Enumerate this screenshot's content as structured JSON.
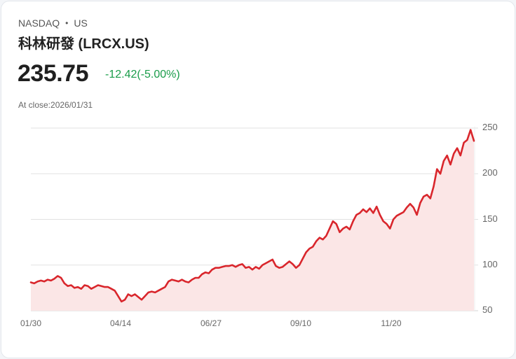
{
  "header": {
    "exchange": "NASDAQ",
    "separator": "•",
    "region": "US",
    "title": "科林研發 (LRCX.US)",
    "price": "235.75",
    "change": "-12.42(-5.00%)",
    "close_label": "At close:2026/01/31"
  },
  "colors": {
    "line": "#d9262c",
    "fill": "#fbe6e6",
    "change_text": "#1a9c4a",
    "grid": "#e2e2e2"
  },
  "chart_data": {
    "type": "area",
    "title": "科林研發 (LRCX.US)",
    "xlabel": "",
    "ylabel": "",
    "x_tick_labels": [
      "01/30",
      "04/14",
      "06/27",
      "09/10",
      "11/20"
    ],
    "y_tick_labels": [
      "250",
      "200",
      "150",
      "100",
      "50"
    ],
    "y_ticks": [
      250,
      200,
      150,
      100,
      50
    ],
    "ylim": [
      50,
      250
    ],
    "grid": true,
    "legend": "none",
    "y_axis_position": "right",
    "series": [
      {
        "name": "LRCX.US",
        "values": [
          81,
          80,
          82,
          83,
          82,
          84,
          83,
          85,
          88,
          86,
          80,
          77,
          78,
          75,
          76,
          74,
          78,
          77,
          74,
          76,
          78,
          77,
          76,
          76,
          74,
          72,
          66,
          60,
          62,
          68,
          66,
          68,
          65,
          62,
          66,
          70,
          71,
          70,
          72,
          74,
          76,
          82,
          84,
          83,
          82,
          84,
          82,
          81,
          84,
          86,
          86,
          90,
          92,
          91,
          95,
          97,
          97,
          98,
          99,
          99,
          100,
          98,
          100,
          101,
          97,
          98,
          95,
          98,
          96,
          100,
          102,
          104,
          106,
          99,
          97,
          98,
          101,
          104,
          101,
          97,
          100,
          107,
          114,
          118,
          120,
          126,
          130,
          128,
          132,
          140,
          148,
          145,
          136,
          140,
          142,
          139,
          148,
          155,
          157,
          161,
          158,
          162,
          157,
          164,
          155,
          148,
          145,
          140,
          150,
          154,
          156,
          158,
          163,
          167,
          163,
          155,
          168,
          175,
          177,
          173,
          186,
          205,
          200,
          214,
          220,
          210,
          222,
          228,
          220,
          234,
          237,
          248,
          236
        ]
      }
    ]
  }
}
